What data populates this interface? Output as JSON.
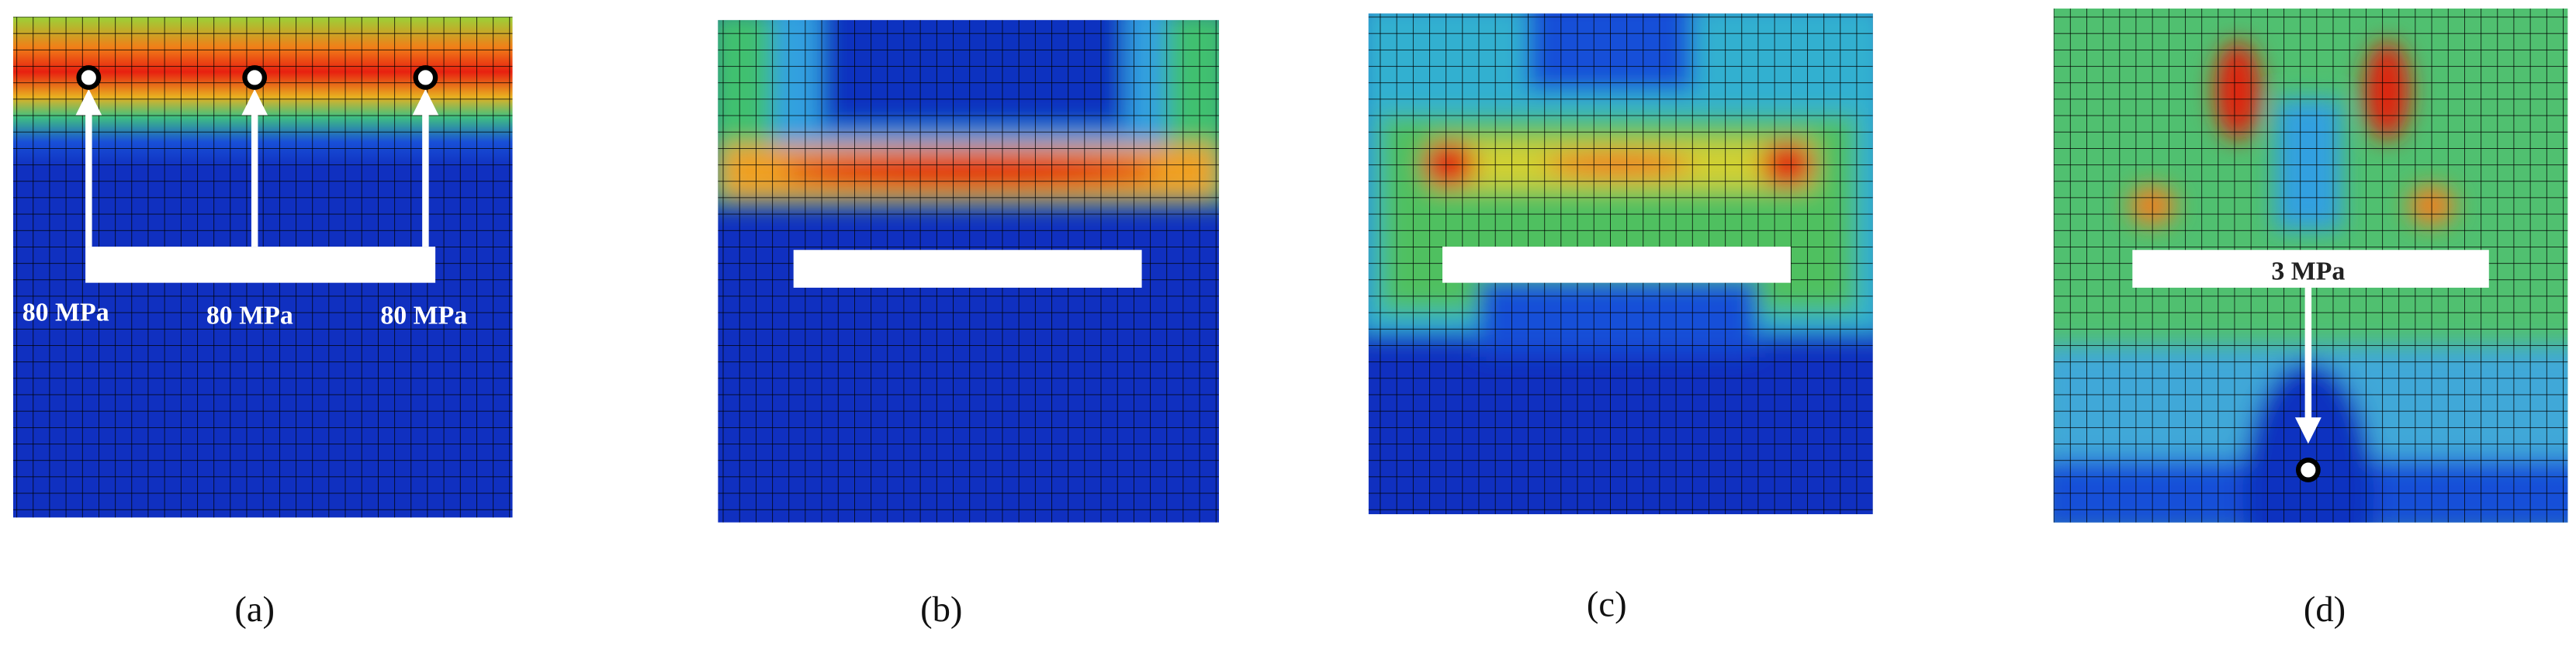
{
  "panels": [
    {
      "label": "(a)",
      "loads": [
        "80 MPa",
        "80 MPa",
        "80 MPa"
      ]
    },
    {
      "label": "(b)"
    },
    {
      "label": "(c)"
    },
    {
      "label": "(d)",
      "loads": [
        "3 MPa"
      ]
    }
  ]
}
